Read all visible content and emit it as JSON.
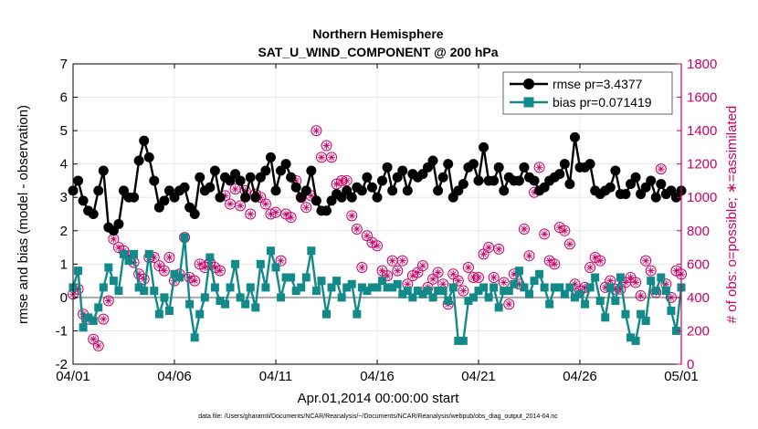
{
  "chart_data": {
    "type": "line",
    "title": "Northern Hemisphere",
    "subtitle": "SAT_U_WIND_COMPONENT @ 200 hPa",
    "xlabel": "Apr.01,2014 00:00:00 start",
    "ylabel": "rmse and bias (model - observation)",
    "y2label": "# of obs: o=possible; ∗=assimilated",
    "footnote": "data file: /Users/gharamti/Documents/NCAR/Reanalysis/~/Documents/NCAR/Reanalysis/webpub/obs_diag_output_2014-04.nc",
    "xlim": [
      0,
      120
    ],
    "ylim": [
      -2,
      7
    ],
    "y2lim": [
      0,
      1800
    ],
    "x_ticks": [
      0,
      20,
      40,
      60,
      80,
      100,
      120
    ],
    "x_tick_labels": [
      "04/01",
      "04/06",
      "04/11",
      "04/16",
      "04/21",
      "04/26",
      "05/01"
    ],
    "y_ticks": [
      -2,
      -1,
      0,
      1,
      2,
      3,
      4,
      5,
      6,
      7
    ],
    "y_tick_labels": [
      "-2",
      "-1",
      "0",
      "1",
      "2",
      "3",
      "4",
      "5",
      "6",
      "7"
    ],
    "y2_ticks": [
      0,
      200,
      400,
      600,
      800,
      1000,
      1200,
      1400,
      1600,
      1800
    ],
    "y2_tick_labels": [
      "0",
      "200",
      "400",
      "600",
      "800",
      "1000",
      "1200",
      "1400",
      "1600",
      "1800"
    ],
    "colors": {
      "rmse": "#000000",
      "bias": "#138a8a",
      "obs": "#cc0066",
      "zero_line": "#a8a8a8",
      "grid": "#e8e8e8",
      "axis": "#000000"
    },
    "series": [
      {
        "name": "rmse pr=3.4377",
        "axis": "left",
        "marker": "circle",
        "values": [
          3.2,
          3.5,
          2.9,
          2.6,
          2.5,
          3.2,
          3.8,
          2.1,
          2.0,
          2.2,
          3.2,
          3.0,
          3.0,
          4.1,
          4.7,
          4.2,
          3.5,
          2.7,
          2.9,
          3.2,
          3.0,
          3.2,
          3.3,
          2.7,
          2.5,
          3.6,
          3.2,
          3.3,
          3.8,
          3.0,
          3.6,
          3.5,
          3.7,
          3.5,
          3.0,
          3.6,
          3.0,
          3.6,
          3.8,
          4.2,
          3.2,
          3.8,
          4.0,
          3.6,
          3.3,
          3.0,
          3.2,
          3.8,
          2.9,
          2.6,
          2.6,
          2.9,
          3.1,
          3.0,
          3.2,
          3.0,
          3.3,
          3.2,
          3.6,
          3.3,
          3.0,
          3.5,
          3.9,
          3.2,
          3.6,
          3.8,
          3.2,
          3.7,
          3.6,
          3.7,
          3.9,
          4.1,
          3.2,
          3.6,
          4.0,
          3.0,
          3.2,
          3.4,
          3.9,
          4.0,
          3.5,
          4.5,
          3.5,
          3.5,
          3.9,
          3.2,
          3.6,
          3.5,
          3.5,
          3.9,
          3.6,
          3.5,
          3.2,
          3.3,
          3.5,
          3.6,
          3.7,
          4.0,
          3.4,
          4.8,
          3.9,
          3.9,
          4.0,
          3.2,
          3.1,
          3.2,
          3.3,
          3.8,
          3.1,
          3.1,
          3.4,
          3.6,
          3.1,
          3.3,
          3.5,
          3.0,
          3.4,
          3.1,
          3.2,
          3.0,
          3.2
        ]
      },
      {
        "name": "bias pr=0.071419",
        "axis": "left",
        "marker": "square",
        "values": [
          0.3,
          0.8,
          -0.9,
          -0.6,
          -0.7,
          -0.3,
          0.3,
          0.9,
          0.5,
          0.2,
          1.3,
          1.1,
          1.3,
          0.3,
          0.2,
          1.3,
          0.2,
          -0.5,
          0.0,
          -0.4,
          0.7,
          0.6,
          1.8,
          -0.2,
          -1.2,
          -0.5,
          0.0,
          1.2,
          0.3,
          -0.1,
          -0.2,
          0.3,
          1.0,
          0.0,
          -0.2,
          0.3,
          -0.3,
          1.0,
          0.3,
          1.4,
          0.9,
          0.0,
          0.6,
          0.6,
          0.2,
          0.3,
          0.6,
          1.4,
          0.2,
          0.5,
          -0.5,
          0.3,
          0.5,
          0.0,
          0.3,
          0.4,
          -0.5,
          0.3,
          0.2,
          0.3,
          0.3,
          0.5,
          0.3,
          0.3,
          0.4,
          0.1,
          0.2,
          0.0,
          0.2,
          0.1,
          0.2,
          0.0,
          0.2,
          0.2,
          -0.1,
          0.3,
          -1.3,
          -1.3,
          -0.1,
          0.0,
          0.2,
          0.3,
          0.0,
          0.3,
          -0.3,
          0.2,
          0.2,
          0.4,
          0.8,
          0.3,
          0.1,
          0.5,
          0.7,
          0.3,
          -0.2,
          0.3,
          0.3,
          0.1,
          0.3,
          0.0,
          0.1,
          -0.2,
          0.3,
          0.6,
          -0.1,
          -0.6,
          0.3,
          -0.1,
          0.6,
          -0.5,
          -1.2,
          -1.3,
          -0.5,
          -0.7,
          0.5,
          0.2,
          0.6,
          0.2,
          -0.4,
          -1.0,
          0.3
        ]
      },
      {
        "name": "# of obs assimilated",
        "axis": "right",
        "marker": "circle-asterisk",
        "values": [
          420,
          450,
          300,
          270,
          150,
          110,
          270,
          380,
          750,
          700,
          680,
          650,
          610,
          540,
          510,
          640,
          640,
          590,
          560,
          640,
          500,
          540,
          760,
          520,
          500,
          600,
          580,
          610,
          580,
          560,
          1010,
          960,
          1050,
          950,
          1040,
          900,
          1020,
          1000,
          960,
          900,
          910,
          620,
          900,
          880,
          1100,
          1000,
          940,
          1010,
          1400,
          1240,
          1310,
          1240,
          1080,
          1100,
          1100,
          890,
          810,
          580,
          770,
          730,
          710,
          560,
          530,
          620,
          560,
          620,
          480,
          530,
          550,
          590,
          460,
          510,
          550,
          480,
          360,
          540,
          500,
          440,
          580,
          520,
          520,
          660,
          700,
          520,
          690,
          490,
          360,
          540,
          480,
          810,
          650,
          1030,
          1180,
          780,
          620,
          600,
          820,
          800,
          720,
          480,
          440,
          460,
          580,
          640,
          620,
          460,
          500,
          450,
          450,
          490,
          520,
          490,
          410,
          620,
          560,
          430,
          1170,
          480,
          400,
          560,
          540
        ]
      }
    ]
  },
  "legend": {
    "rmse_label": "rmse pr=3.4377",
    "bias_label": "bias pr=0.071419",
    "position": "top-right"
  }
}
